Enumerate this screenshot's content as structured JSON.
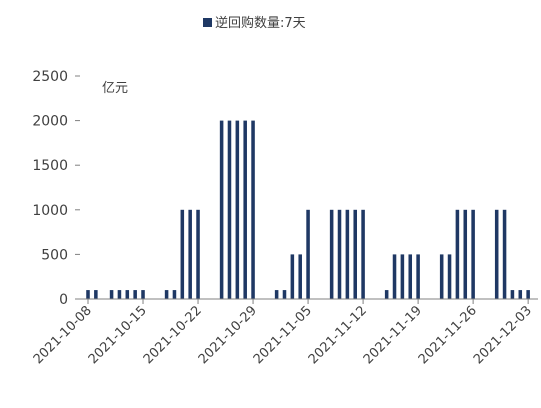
{
  "chart_data": {
    "type": "bar",
    "legend": {
      "label": "逆回购数量:7天",
      "position": "top-center",
      "color": "#1f3864"
    },
    "unit_label": "亿元",
    "ylim": [
      0,
      2500
    ],
    "yticks": [
      0,
      500,
      1000,
      1500,
      2000,
      2500
    ],
    "xlim": [
      "2021-10-08",
      "2021-12-03"
    ],
    "xticks": [
      "2021-10-08",
      "2021-10-15",
      "2021-10-22",
      "2021-10-29",
      "2021-11-05",
      "2021-11-12",
      "2021-11-19",
      "2021-11-26",
      "2021-12-03"
    ],
    "grid": false,
    "bar_color": "#1f3864",
    "series": [
      {
        "x": [
          "2021-10-08",
          "2021-10-09",
          "2021-10-11",
          "2021-10-12",
          "2021-10-13",
          "2021-10-14",
          "2021-10-15",
          "2021-10-18",
          "2021-10-19",
          "2021-10-20",
          "2021-10-21",
          "2021-10-22",
          "2021-10-25",
          "2021-10-26",
          "2021-10-27",
          "2021-10-28",
          "2021-10-29",
          "2021-11-01",
          "2021-11-02",
          "2021-11-03",
          "2021-11-04",
          "2021-11-05",
          "2021-11-08",
          "2021-11-09",
          "2021-11-10",
          "2021-11-11",
          "2021-11-12",
          "2021-11-15",
          "2021-11-16",
          "2021-11-17",
          "2021-11-18",
          "2021-11-19",
          "2021-11-22",
          "2021-11-23",
          "2021-11-24",
          "2021-11-25",
          "2021-11-26",
          "2021-11-29",
          "2021-11-30",
          "2021-12-01",
          "2021-12-02",
          "2021-12-03"
        ],
        "values": [
          100,
          100,
          100,
          100,
          100,
          100,
          100,
          100,
          100,
          1000,
          1000,
          1000,
          2000,
          2000,
          2000,
          2000,
          2000,
          100,
          100,
          500,
          500,
          1000,
          1000,
          1000,
          1000,
          1000,
          1000,
          100,
          500,
          500,
          500,
          500,
          500,
          500,
          1000,
          1000,
          1000,
          1000,
          1000,
          100,
          100,
          100
        ]
      }
    ]
  }
}
